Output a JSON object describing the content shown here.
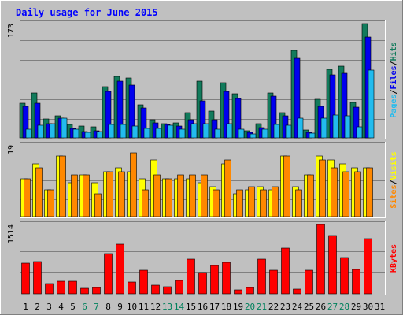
{
  "title": "Daily usage for June 2015",
  "colors": {
    "background": "#c0c0c0",
    "title": "#0000ff",
    "hits": "#127b5c",
    "files": "#0000ee",
    "pages": "#22bbee",
    "visits": "#ffff00",
    "sites": "#ff8800",
    "kbytes": "#ff0000",
    "weekend_day_label": "#00805c",
    "weekday_label": "#000000"
  },
  "chart_data": [
    {
      "type": "bar",
      "title": "Hits / Files / Pages",
      "ylabel_parts": [
        "Pages",
        "/",
        "Files",
        "/",
        "Hits"
      ],
      "ymax_label": "173",
      "ylim": [
        0,
        173
      ],
      "categories": [
        "1",
        "2",
        "3",
        "4",
        "5",
        "6",
        "7",
        "8",
        "9",
        "10",
        "11",
        "12",
        "13",
        "14",
        "15",
        "16",
        "17",
        "18",
        "19",
        "20",
        "21",
        "22",
        "23",
        "24",
        "25",
        "26",
        "27",
        "28",
        "29",
        "30",
        "31"
      ],
      "series": [
        {
          "name": "Hits",
          "values": [
            52,
            68,
            29,
            33,
            20,
            18,
            17,
            77,
            93,
            91,
            50,
            28,
            22,
            23,
            38,
            86,
            40,
            84,
            67,
            11,
            22,
            68,
            38,
            133,
            12,
            58,
            104,
            108,
            54,
            173,
            0
          ]
        },
        {
          "name": "Files",
          "values": [
            48,
            52,
            22,
            30,
            14,
            10,
            11,
            70,
            86,
            80,
            45,
            23,
            20,
            18,
            28,
            56,
            28,
            70,
            60,
            8,
            16,
            63,
            33,
            120,
            8,
            48,
            95,
            98,
            47,
            153,
            0
          ]
        },
        {
          "name": "Pages",
          "values": [
            13,
            19,
            22,
            30,
            13,
            8,
            10,
            20,
            20,
            18,
            14,
            14,
            19,
            13,
            21,
            22,
            13,
            21,
            13,
            6,
            13,
            20,
            19,
            30,
            7,
            30,
            35,
            34,
            17,
            103,
            0
          ]
        }
      ]
    },
    {
      "type": "bar",
      "title": "Visits / Sites",
      "ylabel_parts": [
        "Sites",
        "/",
        "Visits"
      ],
      "ymax_label": "19",
      "ylim": [
        0,
        19
      ],
      "categories": [
        "1",
        "2",
        "3",
        "4",
        "5",
        "6",
        "7",
        "8",
        "9",
        "10",
        "11",
        "12",
        "13",
        "14",
        "15",
        "16",
        "17",
        "18",
        "19",
        "20",
        "21",
        "22",
        "23",
        "24",
        "25",
        "26",
        "27",
        "28",
        "29",
        "30",
        "31"
      ],
      "series": [
        {
          "name": "Visits",
          "values": [
            10,
            14,
            7,
            16,
            9,
            11,
            9,
            12,
            13,
            12,
            10,
            15,
            10,
            10,
            10,
            9,
            8,
            14,
            6,
            7,
            8,
            7,
            16,
            8,
            11,
            16,
            15,
            14,
            13,
            13,
            0
          ]
        },
        {
          "name": "Sites",
          "values": [
            10,
            13,
            7,
            16,
            11,
            11,
            6,
            12,
            12,
            17,
            7,
            11,
            10,
            11,
            11,
            11,
            7,
            15,
            7,
            8,
            7,
            8,
            16,
            7,
            11,
            15,
            13,
            12,
            12,
            13,
            0
          ]
        }
      ]
    },
    {
      "type": "bar",
      "title": "KBytes",
      "ylabel_parts": [
        "KBytes"
      ],
      "ymax_label": "1514",
      "ylim": [
        0,
        1514
      ],
      "categories": [
        "1",
        "2",
        "3",
        "4",
        "5",
        "6",
        "7",
        "8",
        "9",
        "10",
        "11",
        "12",
        "13",
        "14",
        "15",
        "16",
        "17",
        "18",
        "19",
        "20",
        "21",
        "22",
        "23",
        "24",
        "25",
        "26",
        "27",
        "28",
        "29",
        "30",
        "31"
      ],
      "series": [
        {
          "name": "KBytes",
          "values": [
            670,
            710,
            230,
            270,
            280,
            120,
            130,
            870,
            1090,
            250,
            510,
            190,
            160,
            290,
            750,
            470,
            620,
            690,
            80,
            140,
            750,
            520,
            1000,
            100,
            520,
            1514,
            1280,
            800,
            530,
            1210,
            0
          ]
        }
      ]
    }
  ],
  "day_labels": [
    {
      "text": "1",
      "weekend": false
    },
    {
      "text": "2",
      "weekend": false
    },
    {
      "text": "3",
      "weekend": false
    },
    {
      "text": "4",
      "weekend": false
    },
    {
      "text": "5",
      "weekend": false
    },
    {
      "text": "6",
      "weekend": true
    },
    {
      "text": "7",
      "weekend": true
    },
    {
      "text": "8",
      "weekend": false
    },
    {
      "text": "9",
      "weekend": false
    },
    {
      "text": "10",
      "weekend": false
    },
    {
      "text": "11",
      "weekend": false
    },
    {
      "text": "12",
      "weekend": false
    },
    {
      "text": "13",
      "weekend": true
    },
    {
      "text": "14",
      "weekend": true
    },
    {
      "text": "15",
      "weekend": false
    },
    {
      "text": "16",
      "weekend": false
    },
    {
      "text": "17",
      "weekend": false
    },
    {
      "text": "18",
      "weekend": false
    },
    {
      "text": "19",
      "weekend": false
    },
    {
      "text": "20",
      "weekend": true
    },
    {
      "text": "21",
      "weekend": true
    },
    {
      "text": "22",
      "weekend": false
    },
    {
      "text": "23",
      "weekend": false
    },
    {
      "text": "24",
      "weekend": false
    },
    {
      "text": "25",
      "weekend": false
    },
    {
      "text": "26",
      "weekend": false
    },
    {
      "text": "27",
      "weekend": true
    },
    {
      "text": "28",
      "weekend": true
    },
    {
      "text": "29",
      "weekend": false
    },
    {
      "text": "30",
      "weekend": false
    },
    {
      "text": "31",
      "weekend": false
    }
  ]
}
